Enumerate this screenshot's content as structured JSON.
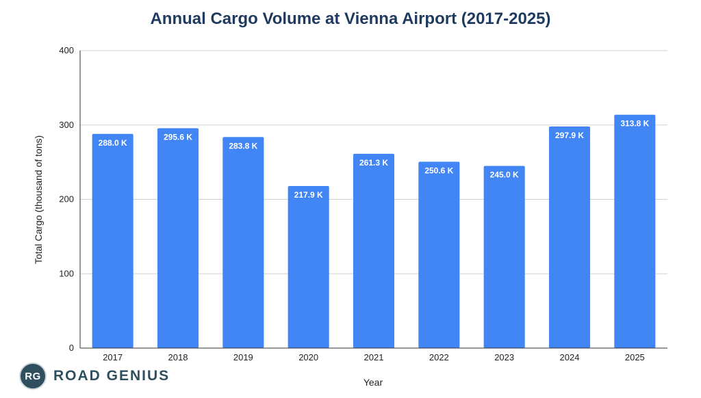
{
  "chart_data": {
    "type": "bar",
    "title": "Annual Cargo Volume at Vienna Airport (2017-2025)",
    "xlabel": "Year",
    "ylabel": "Total Cargo (thousand of tons)",
    "categories": [
      "2017",
      "2018",
      "2019",
      "2020",
      "2021",
      "2022",
      "2023",
      "2024",
      "2025"
    ],
    "values": [
      288.0,
      295.6,
      283.8,
      217.9,
      261.3,
      250.6,
      245.0,
      297.9,
      313.8
    ],
    "data_labels": [
      "288.0 K",
      "295.6 K",
      "283.8 K",
      "217.9 K",
      "261.3 K",
      "250.6 K",
      "245.0 K",
      "297.9 K",
      "313.8 K"
    ],
    "ylim": [
      0,
      400
    ],
    "yticks": [
      0,
      100,
      200,
      300,
      400
    ],
    "grid": true,
    "legend": "none",
    "bar_color": "#4285f4"
  },
  "branding": {
    "badge": "RG",
    "name": "ROAD GENIUS"
  }
}
